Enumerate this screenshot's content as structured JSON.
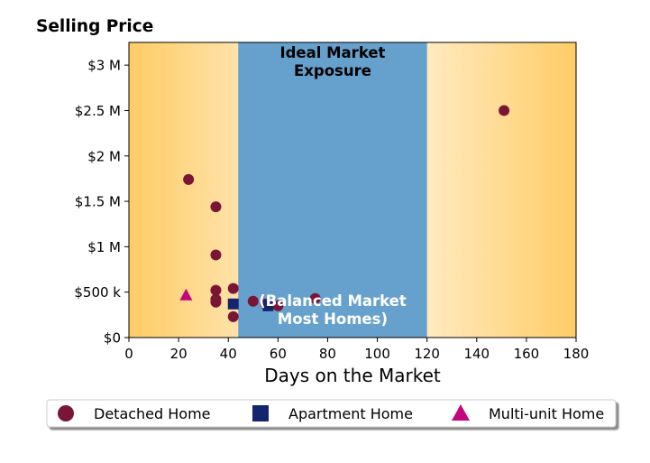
{
  "chart_data": {
    "type": "scatter",
    "title": "Selling Price",
    "xlabel": "Days on the Market",
    "ylabel": "",
    "xlim": [
      0,
      180
    ],
    "ylim": [
      0,
      3250000
    ],
    "x_ticks": [
      0,
      20,
      40,
      60,
      80,
      100,
      120,
      140,
      160,
      180
    ],
    "x_tick_labels": [
      "0",
      "20",
      "40",
      "60",
      "80",
      "100",
      "120",
      "140",
      "160",
      "180"
    ],
    "y_ticks": [
      0,
      500000,
      1000000,
      1500000,
      2000000,
      2500000,
      3000000
    ],
    "y_tick_labels": [
      "$0",
      "$500 k",
      "$1 M",
      "$1.5 M",
      "$2 M",
      "$2.5 M",
      "$3 M"
    ],
    "grid": false,
    "background": {
      "edge_color": "#ffcc66",
      "inner_color": "#fff9ee"
    },
    "bands": [
      {
        "x_range": [
          44,
          120
        ],
        "color": "#66a0cd",
        "top_label": [
          "Ideal Market",
          "Exposure"
        ],
        "top_label_color": "#000000",
        "bottom_label": [
          "(Balanced Market",
          "Most Homes)"
        ],
        "bottom_label_color": "#ffffff"
      }
    ],
    "series": [
      {
        "name": "Detached Home",
        "marker": "circle",
        "color": "#7b1535",
        "points": [
          [
            24,
            1740000
          ],
          [
            35,
            1440000
          ],
          [
            35,
            910000
          ],
          [
            35,
            520000
          ],
          [
            35,
            420000
          ],
          [
            35,
            390000
          ],
          [
            42,
            540000
          ],
          [
            42,
            230000
          ],
          [
            50,
            400000
          ],
          [
            55,
            370000
          ],
          [
            60,
            350000
          ],
          [
            75,
            430000
          ],
          [
            151,
            2500000
          ]
        ]
      },
      {
        "name": "Apartment Home",
        "marker": "square",
        "color": "#15246e",
        "points": [
          [
            42,
            370000
          ],
          [
            56,
            350000
          ]
        ]
      },
      {
        "name": "Multi-unit Home",
        "marker": "triangle",
        "color": "#c4067e",
        "points": [
          [
            23,
            470000
          ]
        ]
      }
    ],
    "legend": {
      "position": "bottom",
      "entries": [
        "Detached Home",
        "Apartment Home",
        "Multi-unit Home"
      ]
    }
  }
}
